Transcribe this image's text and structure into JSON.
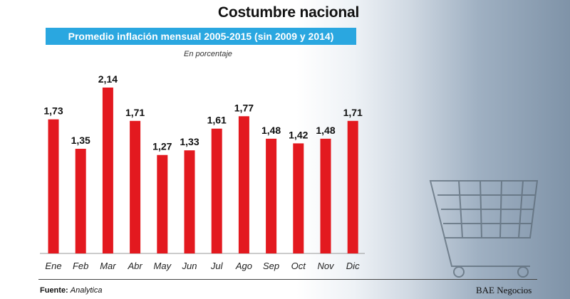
{
  "header": {
    "title": "Costumbre nacional",
    "subtitle": "Promedio inflación mensual 2005-2015 (sin 2009 y 2014)",
    "unit_note": "En porcentaje"
  },
  "footer": {
    "source_label": "Fuente:",
    "source_value": "Analytica",
    "brand": "BAE Negocios"
  },
  "colors": {
    "bar": "#e3191f",
    "subtitle_bg": "#2aa7e0"
  },
  "chart_data": {
    "type": "bar",
    "title": "Promedio inflación mensual 2005-2015 (sin 2009 y 2014)",
    "ylabel": "En porcentaje",
    "xlabel": "",
    "categories": [
      "Ene",
      "Feb",
      "Mar",
      "Abr",
      "May",
      "Jun",
      "Jul",
      "Ago",
      "Sep",
      "Oct",
      "Nov",
      "Dic"
    ],
    "values": [
      1.73,
      1.35,
      2.14,
      1.71,
      1.27,
      1.33,
      1.61,
      1.77,
      1.48,
      1.42,
      1.48,
      1.71
    ],
    "value_labels": [
      "1,73",
      "1,35",
      "2,14",
      "1,71",
      "1,27",
      "1,33",
      "1,61",
      "1,77",
      "1,48",
      "1,42",
      "1,48",
      "1,71"
    ],
    "ylim": [
      0,
      2.14
    ],
    "grid": false
  }
}
